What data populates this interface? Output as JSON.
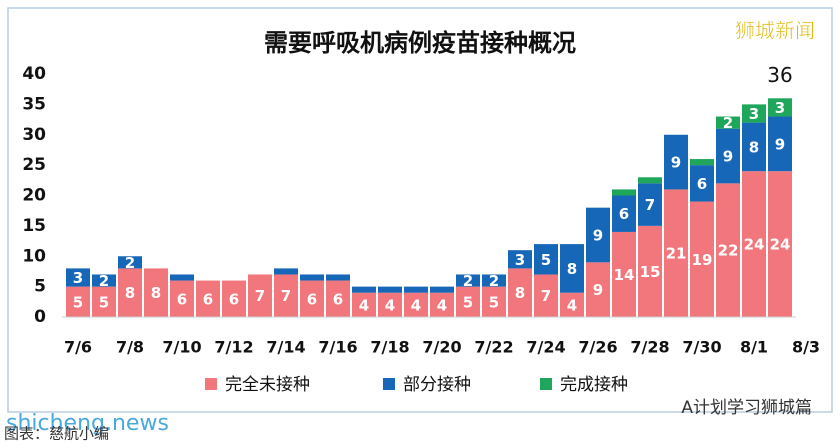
{
  "chart_data": {
    "type": "stacked-bar",
    "title": "需要呼吸机病例疫苗接种概况",
    "categories": [
      "7/6",
      null,
      "7/8",
      null,
      "7/10",
      null,
      "7/12",
      null,
      "7/14",
      null,
      "7/16",
      null,
      "7/18",
      null,
      "7/20",
      null,
      "7/22",
      null,
      "7/24",
      null,
      "7/26",
      null,
      "7/28",
      null,
      "7/30",
      null,
      "8/1",
      null,
      "8/3"
    ],
    "series": [
      {
        "name": "完全未接种",
        "color": "#f2777d",
        "values": [
          5,
          5,
          8,
          8,
          6,
          6,
          6,
          7,
          7,
          6,
          6,
          4,
          4,
          4,
          4,
          5,
          5,
          8,
          7,
          4,
          9,
          14,
          15,
          21,
          19,
          22,
          24,
          24,
          null
        ],
        "value_labels": [
          "5",
          "5",
          "8",
          "8",
          "6",
          "6",
          "6",
          "7",
          "7",
          "6",
          "6",
          "4",
          "4",
          "4",
          "4",
          "5",
          "5",
          "8",
          "7",
          "4",
          "9",
          "14",
          "15",
          "21",
          "19",
          "22",
          "24",
          "24",
          null
        ]
      },
      {
        "name": "部分接种",
        "color": "#1767b8",
        "values": [
          3,
          2,
          2,
          0,
          1,
          0,
          0,
          0,
          1,
          1,
          1,
          1,
          1,
          1,
          1,
          2,
          2,
          3,
          5,
          8,
          9,
          6,
          7,
          9,
          6,
          9,
          8,
          9,
          null
        ],
        "value_labels": [
          "3",
          "2",
          "2",
          null,
          null,
          null,
          null,
          null,
          null,
          null,
          null,
          null,
          null,
          null,
          null,
          "2",
          "2",
          "3",
          "5",
          "8",
          "9",
          "6",
          "7",
          "9",
          "6",
          "9",
          "8",
          "9",
          null
        ]
      },
      {
        "name": "完成接种",
        "color": "#1ea65a",
        "values": [
          0,
          0,
          0,
          0,
          0,
          0,
          0,
          0,
          0,
          0,
          0,
          0,
          0,
          0,
          0,
          0,
          0,
          0,
          0,
          0,
          0,
          1,
          1,
          0,
          1,
          2,
          3,
          3,
          null
        ],
        "value_labels": [
          null,
          null,
          null,
          null,
          null,
          null,
          null,
          null,
          null,
          null,
          null,
          null,
          null,
          null,
          null,
          null,
          null,
          null,
          null,
          null,
          null,
          null,
          null,
          null,
          null,
          "2",
          "3",
          "3",
          null
        ]
      }
    ],
    "annotation": "36",
    "ylim": [
      0,
      40
    ],
    "yticks": [
      0,
      5,
      10,
      15,
      20,
      25,
      30,
      35,
      40
    ],
    "grid": false
  },
  "watermarks": {
    "brand": "狮城新闻",
    "site": "shicheng.news",
    "account": "A计划学习狮城篇",
    "caption": "图表：慈航小编"
  }
}
